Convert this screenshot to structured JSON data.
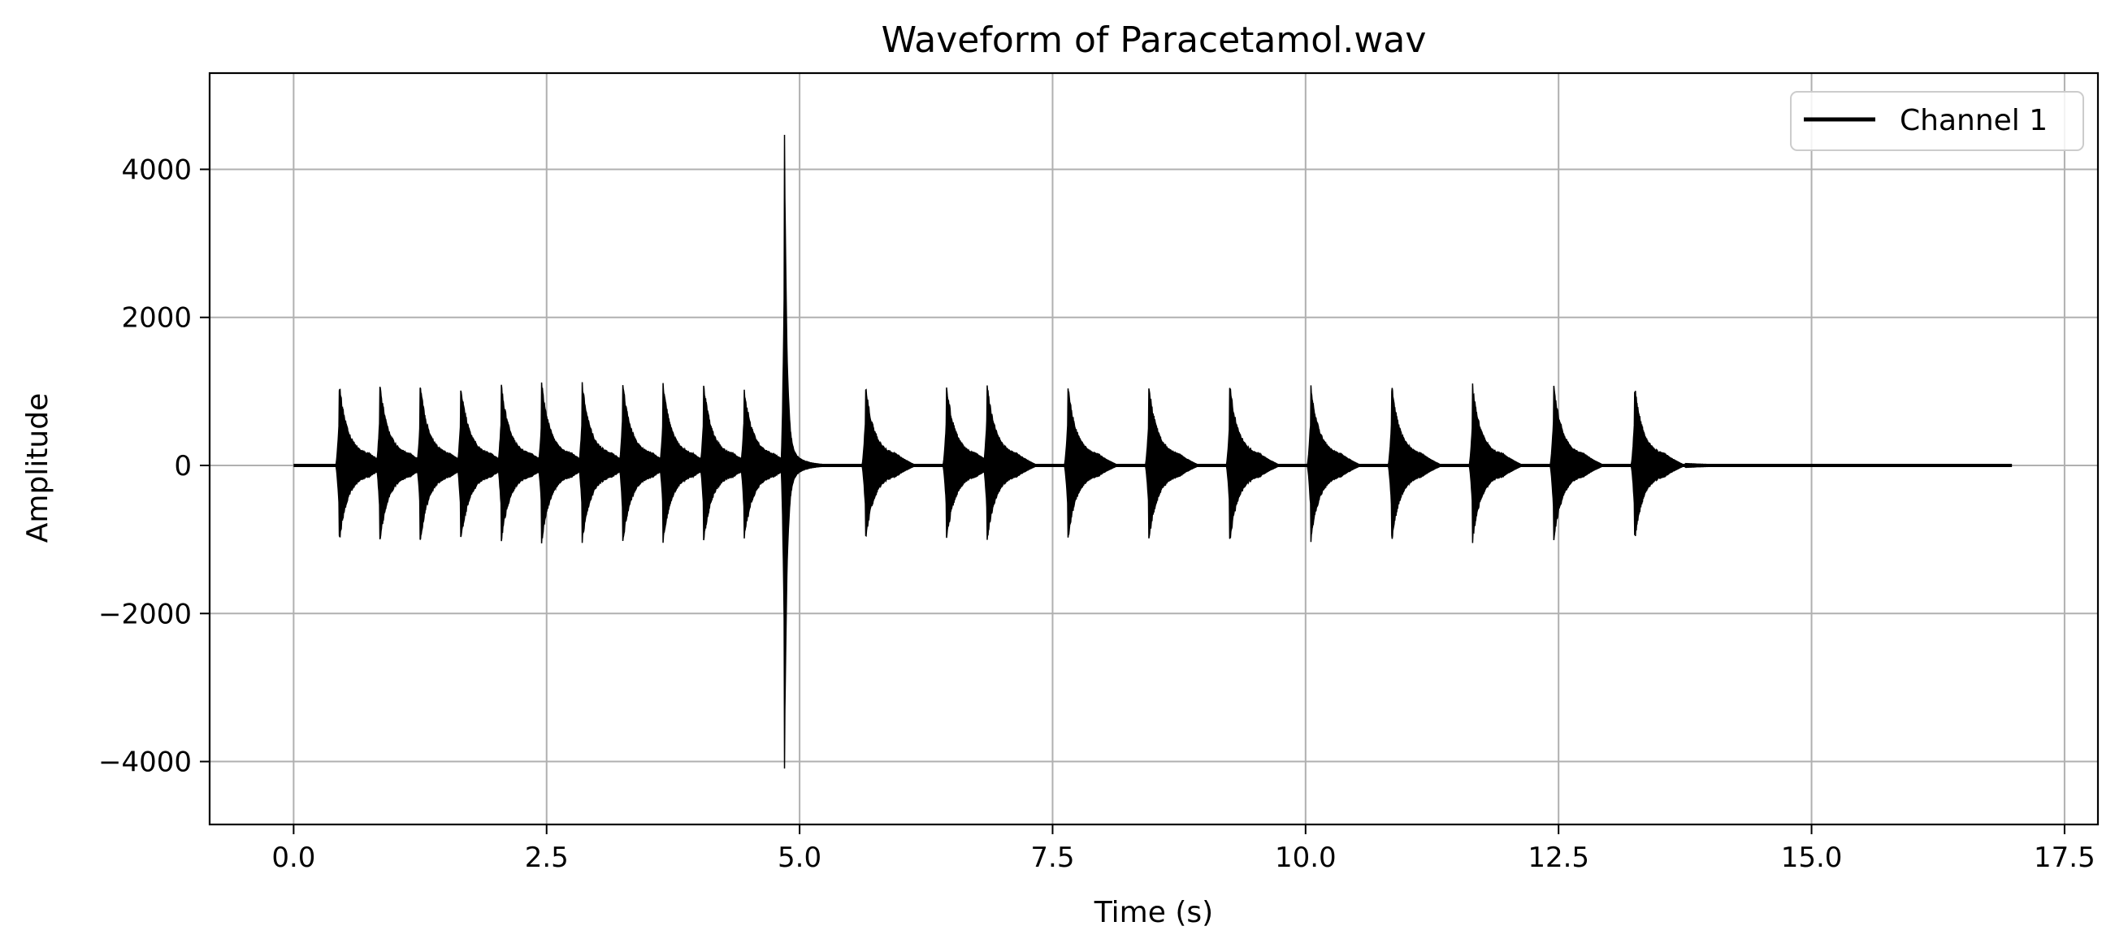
{
  "chart_data": {
    "type": "line",
    "title": "Waveform of Paracetamol.wav",
    "xlabel": "Time (s)",
    "ylabel": "Amplitude",
    "xlim": [
      -0.83,
      17.83
    ],
    "ylim": [
      -4850,
      5300
    ],
    "xticks": [
      0.0,
      2.5,
      5.0,
      7.5,
      10.0,
      12.5,
      15.0,
      17.5
    ],
    "xtick_labels": [
      "0.0",
      "2.5",
      "5.0",
      "7.5",
      "10.0",
      "12.5",
      "15.0",
      "17.5"
    ],
    "yticks": [
      -4000,
      -2000,
      0,
      2000,
      4000
    ],
    "ytick_labels": [
      "−4000",
      "−2000",
      "0",
      "2000",
      "4000"
    ],
    "grid": true,
    "legend_position": "top-right",
    "duration": 16.98,
    "series": [
      {
        "name": "Channel 1",
        "color": "#000000",
        "bursts": [
          {
            "t": 0.45,
            "peak": 1130,
            "trough": -1060
          },
          {
            "t": 0.85,
            "peak": 1150,
            "trough": -1080
          },
          {
            "t": 1.25,
            "peak": 1120,
            "trough": -1070
          },
          {
            "t": 1.65,
            "peak": 1140,
            "trough": -1090
          },
          {
            "t": 2.05,
            "peak": 1130,
            "trough": -1060
          },
          {
            "t": 2.45,
            "peak": 1150,
            "trough": -1080
          },
          {
            "t": 2.85,
            "peak": 1150,
            "trough": -1070
          },
          {
            "t": 3.25,
            "peak": 1160,
            "trough": -1090
          },
          {
            "t": 3.65,
            "peak": 1140,
            "trough": -1070
          },
          {
            "t": 4.05,
            "peak": 1130,
            "trough": -1060
          },
          {
            "t": 4.45,
            "peak": 1100,
            "trough": -1060
          },
          {
            "t": 4.85,
            "peak": 4800,
            "trough": -4400
          },
          {
            "t": 5.65,
            "peak": 1130,
            "trough": -1050
          },
          {
            "t": 6.45,
            "peak": 1130,
            "trough": -1050
          },
          {
            "t": 6.85,
            "peak": 1150,
            "trough": -1070
          },
          {
            "t": 7.65,
            "peak": 1110,
            "trough": -1040
          },
          {
            "t": 8.45,
            "peak": 1120,
            "trough": -1060
          },
          {
            "t": 9.25,
            "peak": 1120,
            "trough": -1060
          },
          {
            "t": 10.05,
            "peak": 1120,
            "trough": -1070
          },
          {
            "t": 10.85,
            "peak": 1120,
            "trough": -1060
          },
          {
            "t": 11.65,
            "peak": 1120,
            "trough": -1060
          },
          {
            "t": 12.45,
            "peak": 1130,
            "trough": -1060
          },
          {
            "t": 13.25,
            "peak": 1120,
            "trough": -1060
          }
        ]
      }
    ]
  }
}
